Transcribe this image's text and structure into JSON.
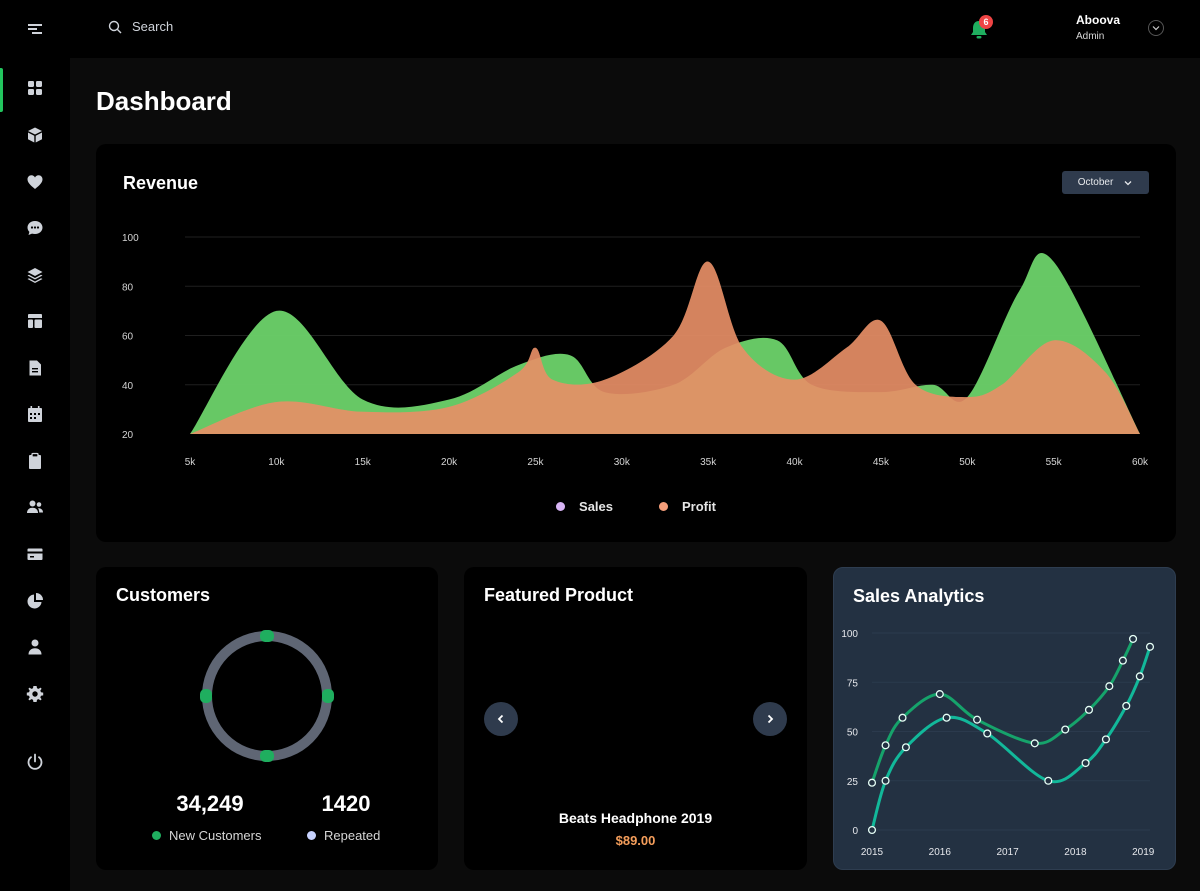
{
  "topbar": {
    "search_placeholder": "Search",
    "notification_count": "6",
    "user_name": "Aboova",
    "user_role": "Admin"
  },
  "sidebar": {
    "items": [
      {
        "name": "dashboard",
        "icon": "grid-icon",
        "active": true
      },
      {
        "name": "products",
        "icon": "cube-icon"
      },
      {
        "name": "favorites",
        "icon": "heart-icon"
      },
      {
        "name": "messages",
        "icon": "chat-icon"
      },
      {
        "name": "layers",
        "icon": "layers-icon"
      },
      {
        "name": "layout",
        "icon": "layout-icon"
      },
      {
        "name": "documents",
        "icon": "file-icon"
      },
      {
        "name": "calendar",
        "icon": "calendar-icon"
      },
      {
        "name": "clipboard",
        "icon": "clipboard-icon"
      },
      {
        "name": "users",
        "icon": "users-icon"
      },
      {
        "name": "payments",
        "icon": "credit-card-icon"
      },
      {
        "name": "reports",
        "icon": "pie-chart-icon"
      },
      {
        "name": "profile",
        "icon": "user-icon"
      },
      {
        "name": "settings",
        "icon": "gear-icon"
      },
      {
        "name": "logout",
        "icon": "power-icon"
      }
    ]
  },
  "page": {
    "title": "Dashboard"
  },
  "revenue": {
    "title": "Revenue",
    "month": "October",
    "legend": [
      "Sales",
      "Profit"
    ]
  },
  "customers": {
    "title": "Customers",
    "new_value": "34,249",
    "new_label": "New Customers",
    "repeated_value": "1420",
    "repeated_label": "Repeated"
  },
  "featured": {
    "title": "Featured Product",
    "product_name": "Beats Headphone 2019",
    "price": "$89.00"
  },
  "analytics": {
    "title": "Sales Analytics"
  },
  "colors": {
    "sales": "#6dd36a",
    "profit": "#f0a070",
    "profit_peak": "#d6735a",
    "accent": "#22c55e",
    "analytics_line_1": "#16a36b",
    "analytics_line_2": "#12b89a",
    "price": "#f59e5b"
  },
  "chart_data": [
    {
      "type": "area",
      "title": "Revenue",
      "x": [
        5,
        10,
        15,
        20,
        25,
        30,
        35,
        40,
        45,
        50,
        55,
        60
      ],
      "x_tick_labels": [
        "5k",
        "10k",
        "15k",
        "20k",
        "25k",
        "30k",
        "35k",
        "40k",
        "45k",
        "50k",
        "55k",
        "60k"
      ],
      "y_ticks": [
        20,
        40,
        60,
        80,
        100
      ],
      "ylim": [
        20,
        100
      ],
      "series": [
        {
          "name": "Sales",
          "x": [
            5,
            10,
            15,
            20,
            24,
            27,
            29,
            33,
            36,
            39,
            41,
            45,
            48,
            50,
            53,
            55,
            60
          ],
          "values": [
            20,
            70,
            34,
            34,
            48,
            52,
            37,
            40,
            55,
            58,
            40,
            37,
            40,
            35,
            78,
            90,
            20
          ]
        },
        {
          "name": "Profit",
          "x": [
            5,
            10,
            15,
            20,
            24,
            25,
            26,
            29,
            33,
            35,
            37,
            40,
            43,
            45,
            47,
            50,
            52,
            55,
            58,
            60
          ],
          "values": [
            20,
            33,
            29,
            31,
            45,
            55,
            42,
            42,
            60,
            90,
            55,
            42,
            55,
            66,
            40,
            35,
            40,
            58,
            45,
            20
          ]
        }
      ],
      "grid": true,
      "legend": "bottom"
    },
    {
      "type": "line",
      "title": "Sales Analytics",
      "x_tick_labels": [
        "2015",
        "2016",
        "2017",
        "2018",
        "2019"
      ],
      "y_ticks": [
        0,
        25,
        50,
        75,
        100
      ],
      "ylim": [
        0,
        100
      ],
      "series": [
        {
          "x": [
            2015.0,
            2015.2,
            2015.45,
            2016.0,
            2016.55,
            2017.4,
            2017.85,
            2018.2,
            2018.5,
            2018.7,
            2018.85
          ],
          "values": [
            24,
            43,
            57,
            69,
            56,
            44,
            51,
            61,
            73,
            86,
            97
          ]
        },
        {
          "x": [
            2015.0,
            2015.2,
            2015.5,
            2016.1,
            2016.7,
            2017.6,
            2018.15,
            2018.45,
            2018.75,
            2018.95,
            2019.1
          ],
          "values": [
            0,
            25,
            42,
            57,
            49,
            25,
            34,
            46,
            63,
            78,
            93
          ]
        }
      ],
      "grid": false
    }
  ]
}
